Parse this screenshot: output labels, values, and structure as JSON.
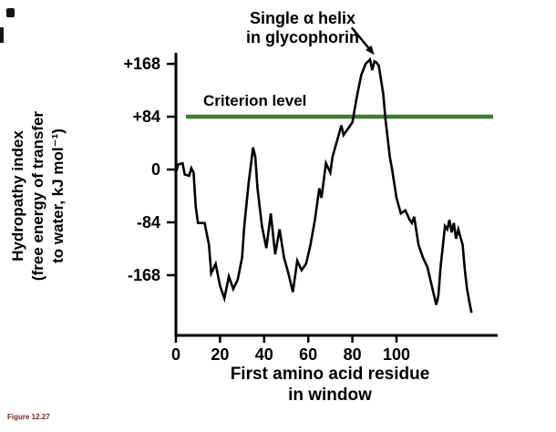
{
  "caption": {
    "text": "Figure 12.27"
  },
  "chart_data": {
    "type": "line",
    "title": "",
    "xlabel_lines": [
      "First amino acid residue",
      "in window"
    ],
    "ylabel_lines": [
      "Hydropathy index",
      "(free energy of transfer",
      "to water, kJ mol⁻¹)"
    ],
    "xlim": [
      0,
      145
    ],
    "ylim": [
      -240,
      200
    ],
    "grid": false,
    "legend": "none",
    "x_ticks": [
      0,
      20,
      40,
      60,
      80,
      100
    ],
    "y_ticks": [
      {
        "value": 168,
        "label": "+168"
      },
      {
        "value": 84,
        "label": "+84"
      },
      {
        "value": 0,
        "label": "0"
      },
      {
        "value": -84,
        "label": "-84"
      },
      {
        "value": -168,
        "label": "-168"
      }
    ],
    "criterion": {
      "label": "Criterion level",
      "value": 84,
      "color": "#3e7b2f"
    },
    "annotation": {
      "lines": [
        "Single α helix",
        "in glycophorin"
      ],
      "points_to": {
        "x": 90,
        "y": 175
      }
    },
    "line_color": "#000000",
    "series": [
      {
        "name": "hydropathy",
        "x": [
          0,
          1,
          3,
          4,
          6,
          7,
          8,
          9,
          10,
          13,
          15,
          16,
          18,
          20,
          22,
          24,
          26,
          28,
          30,
          31,
          33,
          35,
          36,
          37,
          39,
          41,
          43,
          45,
          47,
          49,
          51,
          53,
          55,
          57,
          59,
          61,
          63,
          65,
          66,
          68,
          70,
          71,
          73,
          75,
          76,
          78,
          80,
          82,
          84,
          86,
          88,
          89,
          90,
          91,
          92,
          94,
          95,
          97,
          98,
          100,
          102,
          104,
          106,
          107,
          108,
          110,
          112,
          114,
          116,
          118,
          119,
          120,
          122,
          123,
          124,
          125,
          126,
          127,
          128,
          130,
          131,
          132,
          133,
          134
        ],
        "y": [
          -5,
          8,
          10,
          -8,
          -10,
          2,
          -5,
          -60,
          -85,
          -85,
          -120,
          -165,
          -150,
          -185,
          -205,
          -170,
          -190,
          -175,
          -140,
          -90,
          -20,
          35,
          20,
          -30,
          -90,
          -125,
          -70,
          -135,
          -95,
          -140,
          -165,
          -195,
          -145,
          -160,
          -150,
          -120,
          -80,
          -30,
          -45,
          10,
          -5,
          20,
          45,
          70,
          55,
          65,
          75,
          115,
          150,
          168,
          175,
          158,
          172,
          170,
          165,
          120,
          80,
          20,
          0,
          -45,
          -70,
          -65,
          -80,
          -85,
          -75,
          -120,
          -140,
          -155,
          -185,
          -215,
          -200,
          -155,
          -90,
          -95,
          -80,
          -100,
          -85,
          -110,
          -95,
          -120,
          -160,
          -190,
          -210,
          -228
        ]
      }
    ]
  }
}
